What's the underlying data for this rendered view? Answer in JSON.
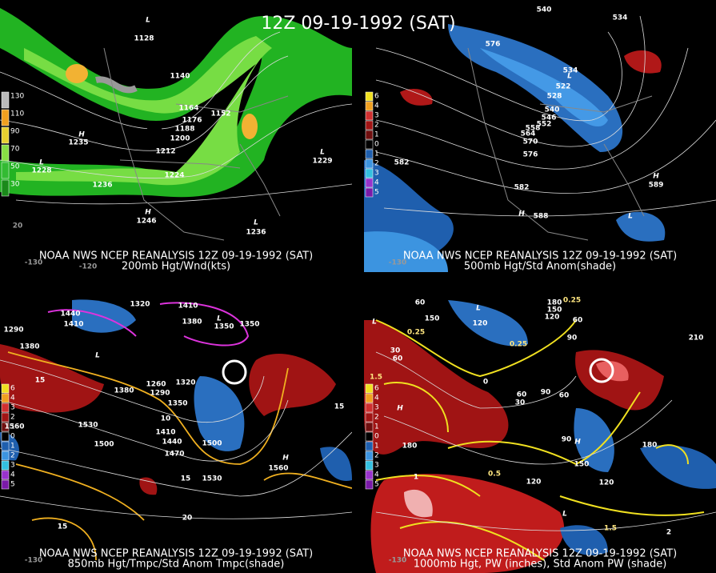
{
  "title": "12Z 09-19-1992 (SAT)",
  "panels": [
    {
      "source": "NOAA NWS NCEP REANALYSIS 12Z 09-19-1992 (SAT)",
      "product": "200mb Hgt/Wnd(kts)",
      "legend": [
        "130",
        "110",
        "90",
        "70",
        "50",
        "30"
      ],
      "contour_labels": [
        "1128",
        "1140",
        "1164",
        "1152",
        "1176",
        "1188",
        "1200",
        "1212",
        "1224",
        "1236",
        "1246",
        "1228",
        "1235",
        "1229",
        "1236",
        "H",
        "H",
        "L",
        "L",
        "L",
        "L"
      ],
      "axis_labels": [
        "-130",
        "-120",
        "20"
      ]
    },
    {
      "source": "NOAA NWS NCEP REANALYSIS 12Z 09-19-1992 (SAT)",
      "product": "500mb Hgt/Std Anom(shade)",
      "legend": [
        "6",
        "4",
        "3",
        "2",
        "1",
        "0",
        "1",
        "2",
        "3",
        "4",
        "5"
      ],
      "contour_labels": [
        "540",
        "534",
        "576",
        "534",
        "522",
        "528",
        "540",
        "546",
        "552",
        "558",
        "564",
        "570",
        "576",
        "582",
        "582",
        "588",
        "589",
        "H",
        "H",
        "L",
        "L"
      ],
      "axis_labels": [
        "-130"
      ]
    },
    {
      "source": "NOAA NWS NCEP REANALYSIS 12Z 09-19-1992 (SAT)",
      "product": "850mb Hgt/Tmpc/Std Anom Tmpc(shade)",
      "legend": [
        "6",
        "4",
        "3",
        "2",
        "1",
        "0",
        "1",
        "2",
        "3",
        "4",
        "5"
      ],
      "contour_labels": [
        "1440",
        "1410",
        "1320",
        "1410",
        "1380",
        "1350",
        "1350",
        "1290",
        "1380",
        "1380",
        "1260",
        "1290",
        "1320",
        "1350",
        "1410",
        "1440",
        "1470",
        "1500",
        "1530",
        "1530",
        "1500",
        "1560",
        "1560",
        "15",
        "15",
        "10",
        "15",
        "20",
        "15",
        "H",
        "L",
        "L"
      ],
      "axis_labels": [
        "-130"
      ]
    },
    {
      "source": "NOAA NWS NCEP REANALYSIS 12Z 09-19-1992 (SAT)",
      "product": "1000mb Hgt, PW (inches), Std Anom PW (shade)",
      "legend": [
        "6",
        "4",
        "3",
        "2",
        "1",
        "0",
        "1",
        "2",
        "3",
        "4",
        "5"
      ],
      "contour_labels": [
        "180",
        "150",
        "120",
        "60",
        "150",
        "120",
        "60",
        "90",
        "30",
        "60",
        "210",
        "0",
        "60",
        "30",
        "90",
        "60",
        "180",
        "90",
        "150",
        "120",
        "120",
        "180",
        "0.25",
        "0.25",
        "0.25",
        "0.5",
        "1.5",
        "2",
        "1",
        "1.5",
        "H",
        "H",
        "L",
        "L",
        "L"
      ],
      "axis_labels": [
        "-130"
      ]
    }
  ]
}
